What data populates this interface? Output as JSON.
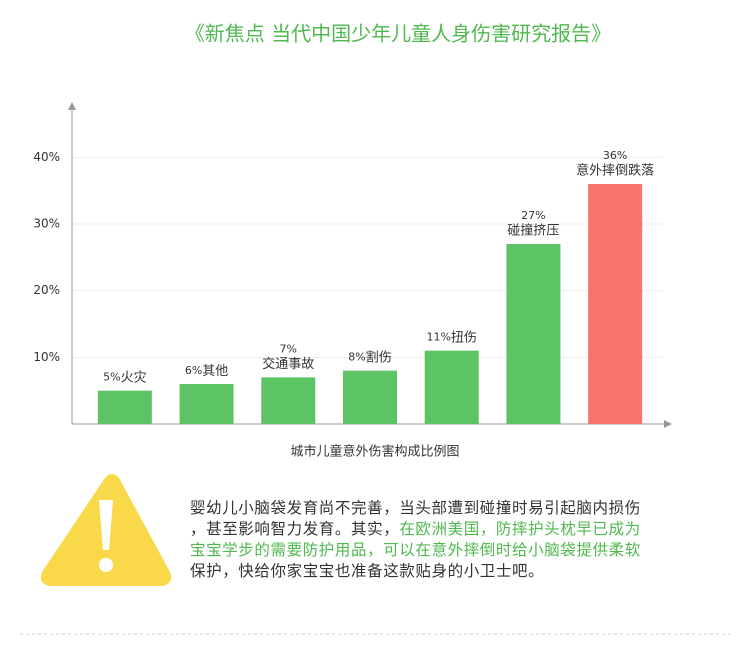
{
  "title": "《新焦点 当代中国少年儿童人身伤害研究报告》",
  "chart_data": {
    "type": "bar",
    "x_label": "城市儿童意外伤害构成比例图",
    "categories": [
      "火灾",
      "其他",
      "交通事故",
      "割伤",
      "扭伤",
      "碰撞挤压",
      "意外摔倒跌落"
    ],
    "values": [
      5,
      6,
      7,
      8,
      11,
      27,
      36
    ],
    "value_labels": [
      "5%",
      "6%",
      "7%",
      "8%",
      "11%",
      "27%",
      "36%"
    ],
    "colors": [
      "#5cc465",
      "#5cc465",
      "#5cc465",
      "#5cc465",
      "#5cc465",
      "#5cc465",
      "#f8736b"
    ],
    "ylim": [
      0,
      48
    ],
    "yticks": [
      {
        "value": 10,
        "label": "10%"
      },
      {
        "value": 20,
        "label": "20%"
      },
      {
        "value": 30,
        "label": "30%"
      },
      {
        "value": 40,
        "label": "40%"
      }
    ],
    "grid": true
  },
  "notice": {
    "lines": [
      [
        {
          "text": "婴幼儿小脑袋发育尚不完善，当头部遭到碰撞时易引起脑内损伤",
          "color": "#333333"
        }
      ],
      [
        {
          "text": "，甚至影响智力发育。其实，",
          "color": "#333333"
        },
        {
          "text": "在欧洲美国，防摔护头枕早已成为",
          "color": "#4fb84e"
        }
      ],
      [
        {
          "text": "宝宝学步的需要防护用品，可以在意外摔倒时给小脑袋提供柔软",
          "color": "#4fb84e"
        }
      ],
      [
        {
          "text": "保护，快给你家宝宝也准备这款贴身的小卫士吧。",
          "color": "#333333"
        }
      ]
    ]
  }
}
